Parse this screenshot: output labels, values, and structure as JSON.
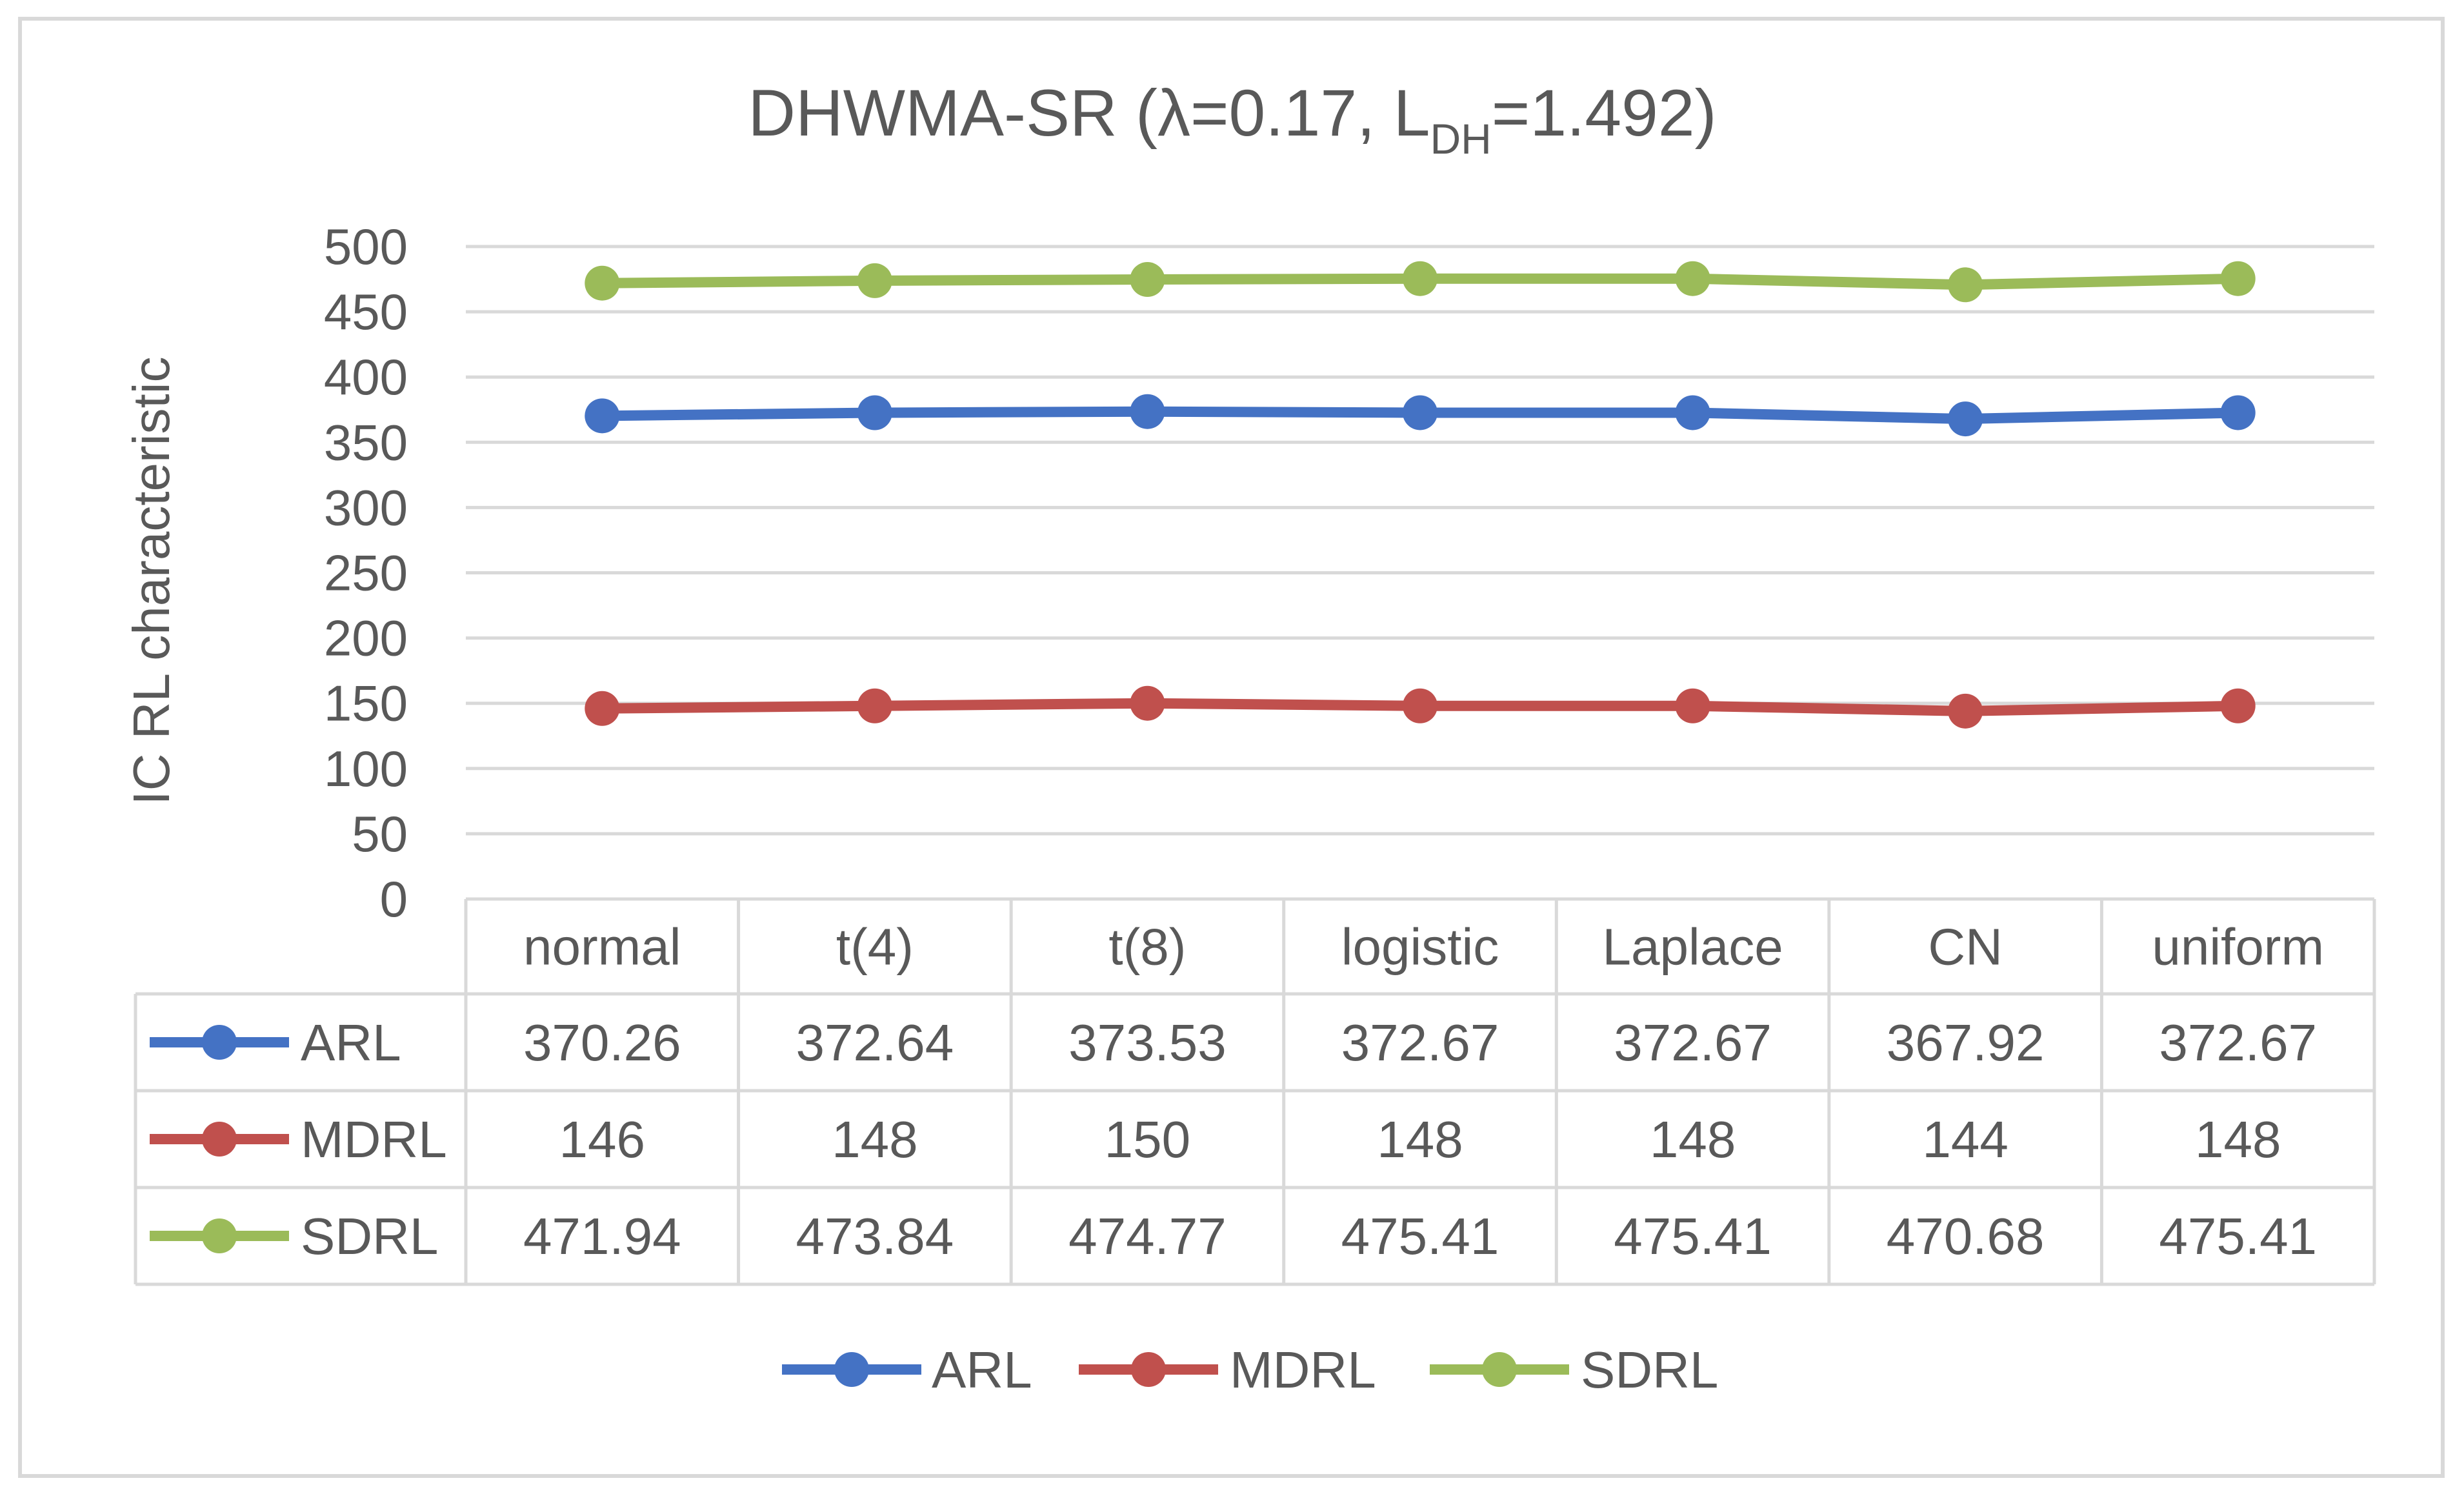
{
  "chart_data": {
    "type": "line",
    "title_main": "DHWMA-SR (λ=0.17, L",
    "title_sub": "DH",
    "title_tail": "=1.492)",
    "ylabel": "IC RL characteristic",
    "ylim": [
      0,
      500
    ],
    "yticks": [
      0,
      50,
      100,
      150,
      200,
      250,
      300,
      350,
      400,
      450,
      500
    ],
    "grid": true,
    "legend_position": "bottom",
    "data_table": true,
    "categories": [
      "normal",
      "t(4)",
      "t(8)",
      "logistic",
      "Laplace",
      "CN",
      "uniform"
    ],
    "series": [
      {
        "name": "ARL",
        "color": "#4472c4",
        "values": [
          370.26,
          372.64,
          373.53,
          372.67,
          372.67,
          367.92,
          372.67
        ],
        "labels": [
          "370.26",
          "372.64",
          "373.53",
          "372.67",
          "372.67",
          "367.92",
          "372.67"
        ]
      },
      {
        "name": "MDRL",
        "color": "#c0504d",
        "values": [
          146,
          148,
          150,
          148,
          148,
          144,
          148
        ],
        "labels": [
          "146",
          "148",
          "150",
          "148",
          "148",
          "144",
          "148"
        ]
      },
      {
        "name": "SDRL",
        "color": "#9bbb59",
        "values": [
          471.94,
          473.84,
          474.77,
          475.41,
          475.41,
          470.68,
          475.41
        ],
        "labels": [
          "471.94",
          "473.84",
          "474.77",
          "475.41",
          "475.41",
          "470.68",
          "475.41"
        ]
      }
    ]
  }
}
